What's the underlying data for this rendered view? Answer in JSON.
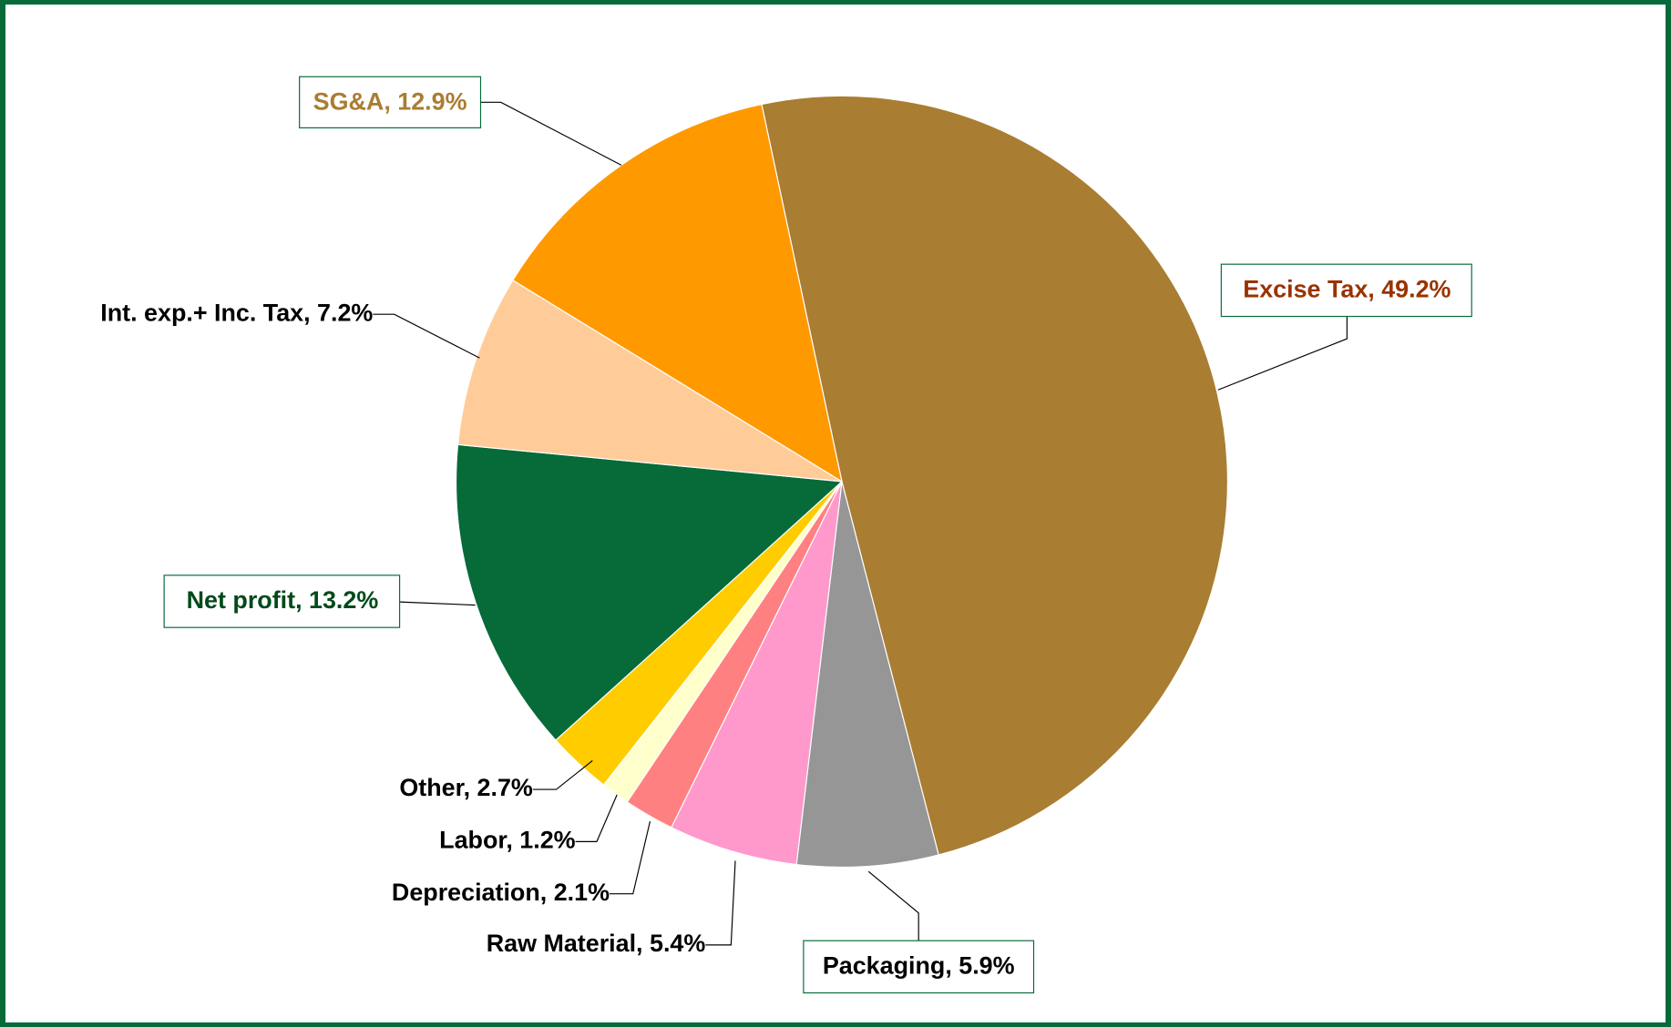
{
  "chart_data": {
    "type": "pie",
    "categories": [
      "Excise Tax",
      "Packaging",
      "Raw Material",
      "Depreciation",
      "Labor",
      "Other",
      "Net profit",
      "Int. exp.+ Inc. Tax",
      "SG&A"
    ],
    "values": [
      49.2,
      5.9,
      5.4,
      2.1,
      1.2,
      2.7,
      13.2,
      7.2,
      12.9
    ],
    "value_labels": [
      "Excise Tax, 49.2%",
      "Packaging, 5.9%",
      "Raw Material, 5.4%",
      "Depreciation, 2.1%",
      "Labor, 1.2%",
      "Other, 2.7%",
      "Net profit, 13.2%",
      "Int. exp.+ Inc. Tax, 7.2%",
      "SG&A, 12.9%"
    ],
    "colors": [
      "#A97D32",
      "#969696",
      "#FF99CC",
      "#FF8080",
      "#FFFFCC",
      "#FFCC00",
      "#066A39",
      "#FFCC99",
      "#FF9900"
    ]
  }
}
